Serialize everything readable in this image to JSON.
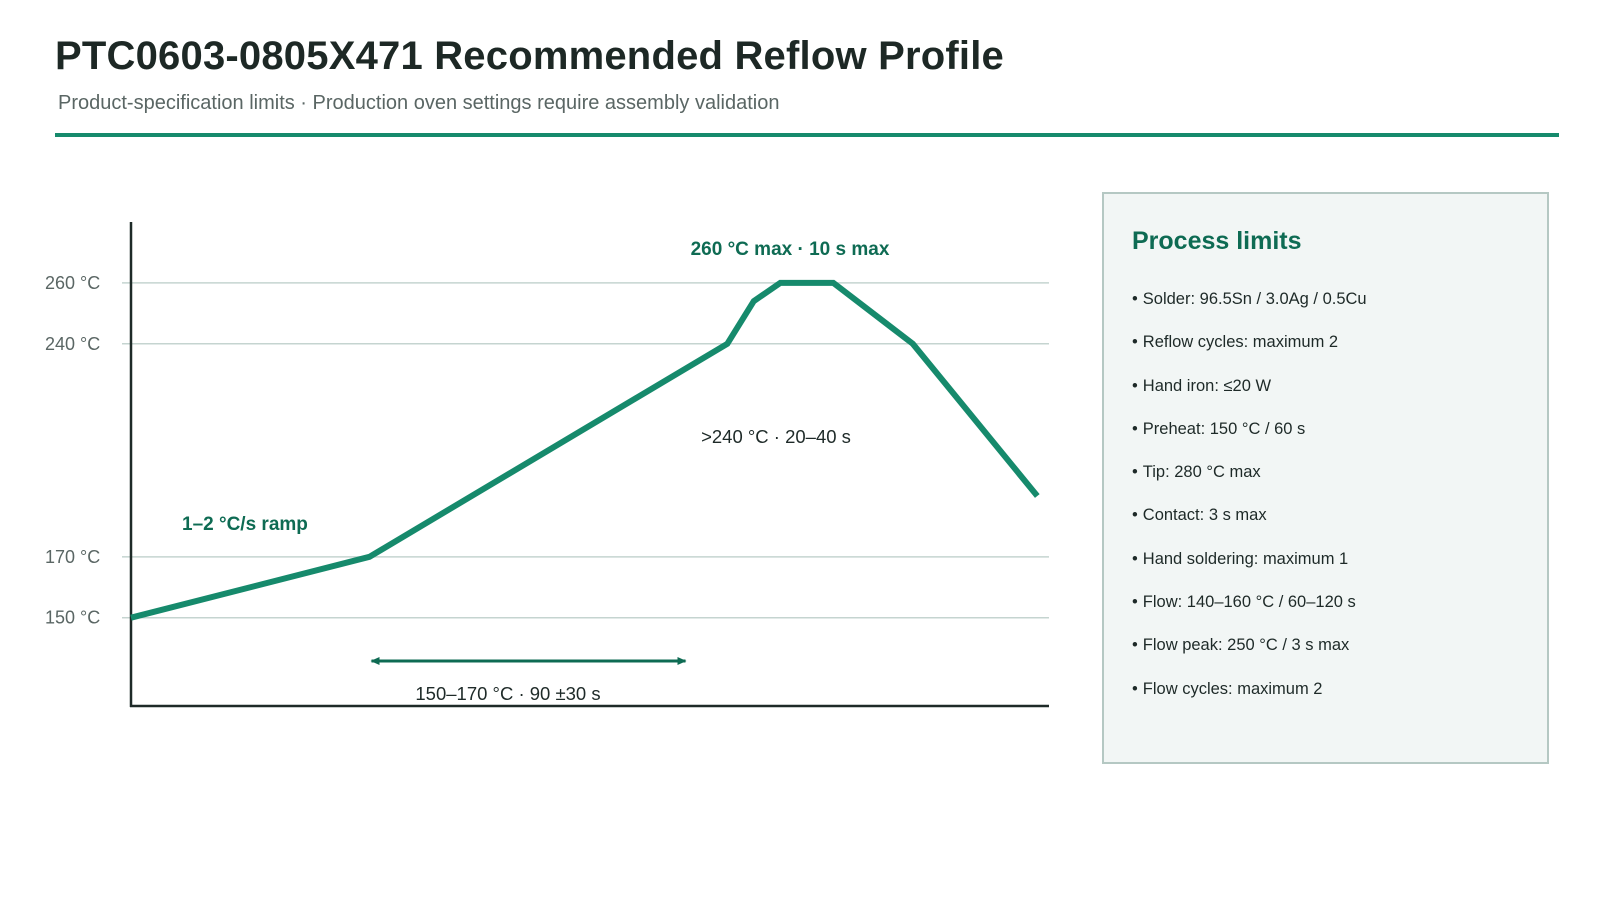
{
  "header": {
    "title": "PTC0603-0805X471 Recommended Reflow Profile",
    "subtitle": "Product-specification limits · Production oven settings require assembly validation"
  },
  "colors": {
    "accent": "#168a6c",
    "accent_dark": "#0e6b53",
    "gridline": "#c5d4d0",
    "axis": "#1e2a28",
    "panel_bg": "#f2f6f5",
    "panel_border": "#b5c8c3"
  },
  "chart_data": {
    "type": "line",
    "title": "",
    "xlabel": "",
    "ylabel": "",
    "yticks": [
      {
        "label": "150 °C",
        "value": 150
      },
      {
        "label": "170 °C",
        "value": 170
      },
      {
        "label": "240 °C",
        "value": 240
      },
      {
        "label": "260 °C",
        "value": 260
      }
    ],
    "ylim": [
      121,
      280
    ],
    "xlim": [
      0,
      340
    ],
    "grid": true,
    "series": [
      {
        "x": [
          0,
          90,
          225,
          235,
          245,
          265,
          295,
          342
        ],
        "y": [
          150,
          170,
          240,
          254,
          260,
          260,
          240,
          190
        ]
      }
    ],
    "annotations": {
      "ramp": "1–2 °C/s ramp",
      "peak": "260 °C max · 10 s max",
      "above240": ">240 °C · 20–40 s",
      "soak": "150–170 °C · 90 ±30 s"
    },
    "soak_arrow": {
      "x_start": 90,
      "x_end": 210
    }
  },
  "panel": {
    "title": "Process limits",
    "items": [
      "Solder: 96.5Sn / 3.0Ag / 0.5Cu",
      "Reflow cycles: maximum 2",
      "Hand iron: ≤20 W",
      "Preheat: 150 °C / 60 s",
      "Tip: 280 °C max",
      "Contact: 3 s max",
      "Hand soldering: maximum 1",
      "Flow: 140–160 °C / 60–120 s",
      "Flow peak: 250 °C / 3 s max",
      "Flow cycles: maximum 2"
    ]
  }
}
